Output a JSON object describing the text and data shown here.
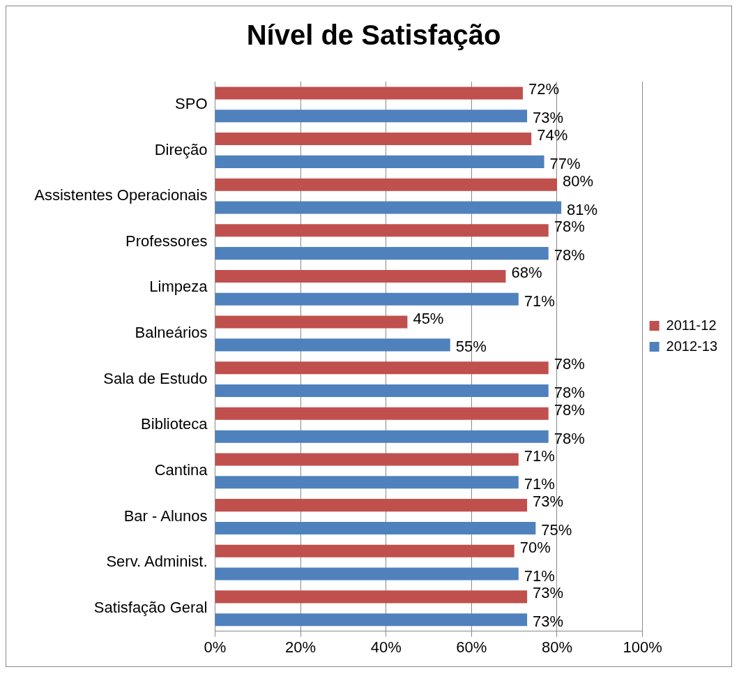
{
  "chart_data": {
    "type": "bar",
    "orientation": "horizontal",
    "title": "Nível de Satisfação",
    "categories": [
      "SPO",
      "Direção",
      "Assistentes Operacionais",
      "Professores",
      "Limpeza",
      "Balneários",
      "Sala de Estudo",
      "Biblioteca",
      "Cantina",
      "Bar - Alunos",
      "Serv. Administ.",
      "Satisfação Geral"
    ],
    "series": [
      {
        "name": "2011-12",
        "color": "#c0504d",
        "values": [
          72,
          74,
          80,
          78,
          68,
          45,
          78,
          78,
          71,
          73,
          70,
          73
        ],
        "value_labels": [
          "72%",
          "74%",
          "80%",
          "78%",
          "68%",
          "45%",
          "78%",
          "78%",
          "71%",
          "73%",
          "70%",
          "73%"
        ]
      },
      {
        "name": "2012-13",
        "color": "#4f81bd",
        "values": [
          73,
          77,
          81,
          78,
          71,
          55,
          78,
          78,
          71,
          75,
          71,
          73
        ],
        "value_labels": [
          "73%",
          "77%",
          "81%",
          "78%",
          "71%",
          "55%",
          "78%",
          "78%",
          "71%",
          "75%",
          "71%",
          "73%"
        ]
      }
    ],
    "xlim": [
      0,
      100
    ],
    "xticks": [
      {
        "value": 0,
        "label": "0%"
      },
      {
        "value": 20,
        "label": "20%"
      },
      {
        "value": 40,
        "label": "40%"
      },
      {
        "value": 60,
        "label": "60%"
      },
      {
        "value": 80,
        "label": "80%"
      },
      {
        "value": 100,
        "label": "100%"
      }
    ],
    "grid": "x",
    "legend": "right"
  }
}
